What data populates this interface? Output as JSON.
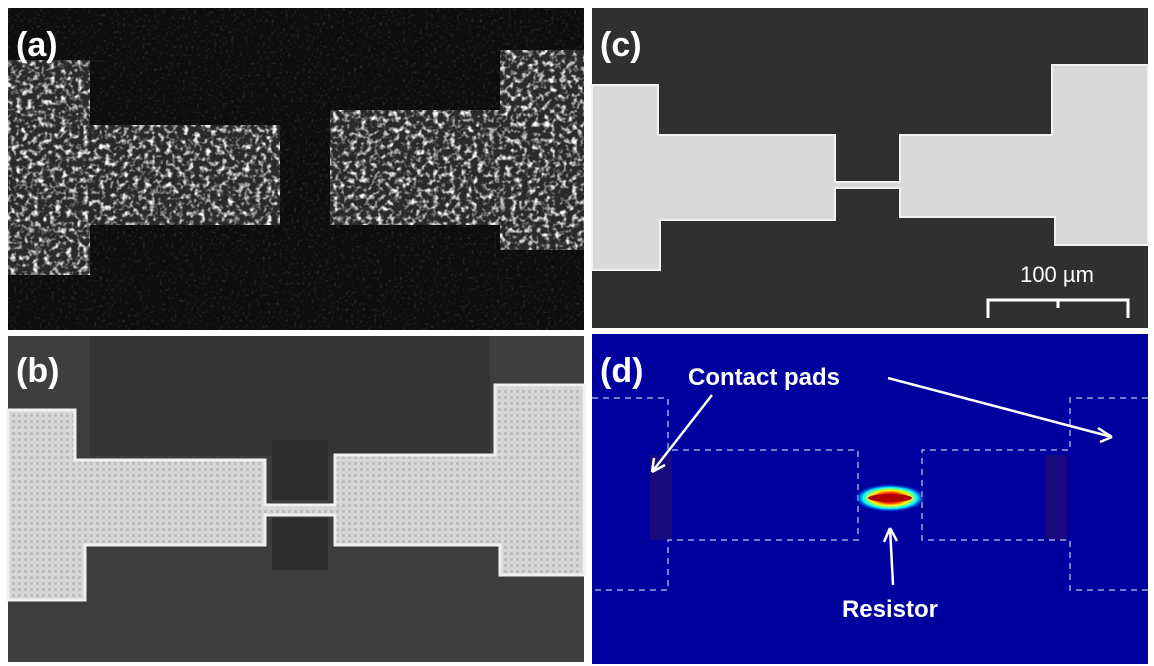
{
  "panels": [
    {
      "label": "(a)"
    },
    {
      "label": "(b)"
    },
    {
      "label": "(c)",
      "scale_bar": "100 µm"
    },
    {
      "label": "(d)",
      "annotations": [
        "Contact pads",
        "Resistor"
      ]
    }
  ]
}
